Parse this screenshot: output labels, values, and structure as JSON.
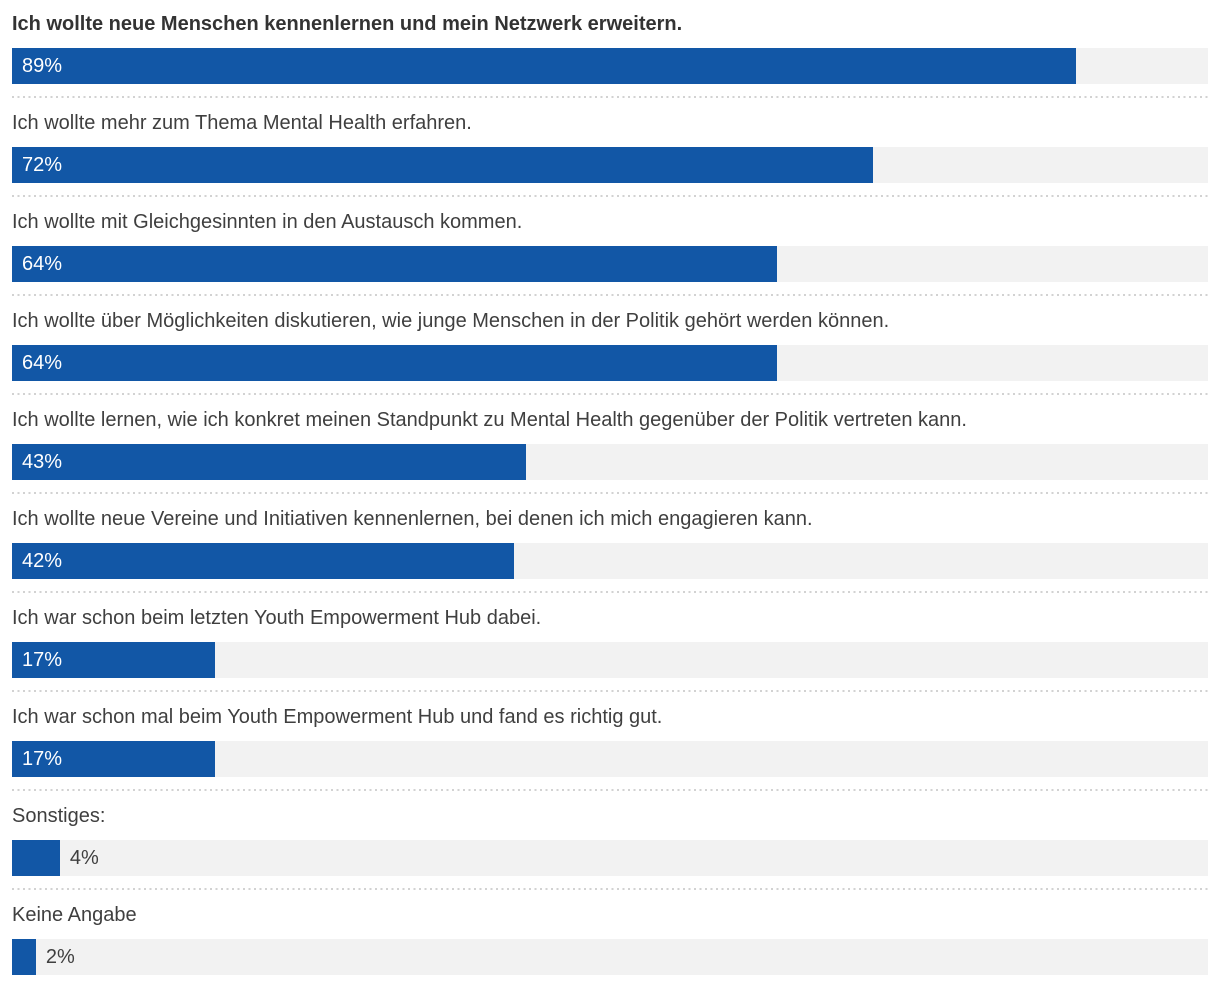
{
  "chart_data": {
    "type": "bar",
    "orientation": "horizontal",
    "title": "",
    "xlabel": "",
    "ylabel": "",
    "unit": "%",
    "xlim": [
      0,
      100
    ],
    "grid": false,
    "legend": false,
    "colors": {
      "bar": "#1257a6",
      "track": "#f2f2f2",
      "label_text": "#3f3f3f",
      "value_inside_text": "#ffffff",
      "value_outside_text": "#3f3f3f",
      "separator_dots": "#d2d2d2",
      "background": "#ffffff"
    },
    "categories": [
      "Ich wollte neue Menschen kennenlernen und mein Netzwerk erweitern.",
      "Ich wollte mehr zum Thema Mental Health erfahren.",
      "Ich wollte mit Gleichgesinnten in den Austausch kommen.",
      "Ich wollte über Möglichkeiten diskutieren, wie junge Menschen in der Politik gehört werden können.",
      "Ich wollte lernen, wie ich konkret meinen Standpunkt zu Mental Health gegenüber der Politik vertreten kann.",
      "Ich wollte neue Vereine und Initiativen kennenlernen, bei denen ich mich engagieren kann.",
      "Ich war schon beim letzten Youth Empowerment Hub dabei.",
      "Ich war schon mal beim Youth Empowerment Hub und fand es richtig gut.",
      "Sonstiges:",
      "Keine Angabe"
    ],
    "values": [
      89,
      72,
      64,
      64,
      43,
      42,
      17,
      17,
      4,
      2
    ],
    "rows": [
      {
        "label": "Ich wollte neue Menschen kennenlernen und mein Netzwerk erweitern.",
        "value": 89,
        "value_label": "89%",
        "value_position": "inside",
        "emphasis": "bold"
      },
      {
        "label": "Ich wollte mehr zum Thema Mental Health erfahren.",
        "value": 72,
        "value_label": "72%",
        "value_position": "inside",
        "emphasis": "normal"
      },
      {
        "label": "Ich wollte mit Gleichgesinnten in den Austausch kommen.",
        "value": 64,
        "value_label": "64%",
        "value_position": "inside",
        "emphasis": "normal"
      },
      {
        "label": "Ich wollte über Möglichkeiten diskutieren, wie junge Menschen in der Politik gehört werden können.",
        "value": 64,
        "value_label": "64%",
        "value_position": "inside",
        "emphasis": "normal"
      },
      {
        "label": "Ich wollte lernen, wie ich konkret meinen Standpunkt zu Mental Health gegenüber der Politik vertreten kann.",
        "value": 43,
        "value_label": "43%",
        "value_position": "inside",
        "emphasis": "normal"
      },
      {
        "label": "Ich wollte neue Vereine und Initiativen kennenlernen, bei denen ich mich engagieren kann.",
        "value": 42,
        "value_label": "42%",
        "value_position": "inside",
        "emphasis": "normal"
      },
      {
        "label": "Ich war schon beim letzten Youth Empowerment Hub dabei.",
        "value": 17,
        "value_label": "17%",
        "value_position": "inside",
        "emphasis": "normal"
      },
      {
        "label": "Ich war schon mal beim Youth Empowerment Hub und fand es richtig gut.",
        "value": 17,
        "value_label": "17%",
        "value_position": "inside",
        "emphasis": "normal"
      },
      {
        "label": "Sonstiges:",
        "value": 4,
        "value_label": "4%",
        "value_position": "outside",
        "emphasis": "normal"
      },
      {
        "label": "Keine Angabe",
        "value": 2,
        "value_label": "2%",
        "value_position": "outside",
        "emphasis": "normal"
      }
    ]
  }
}
